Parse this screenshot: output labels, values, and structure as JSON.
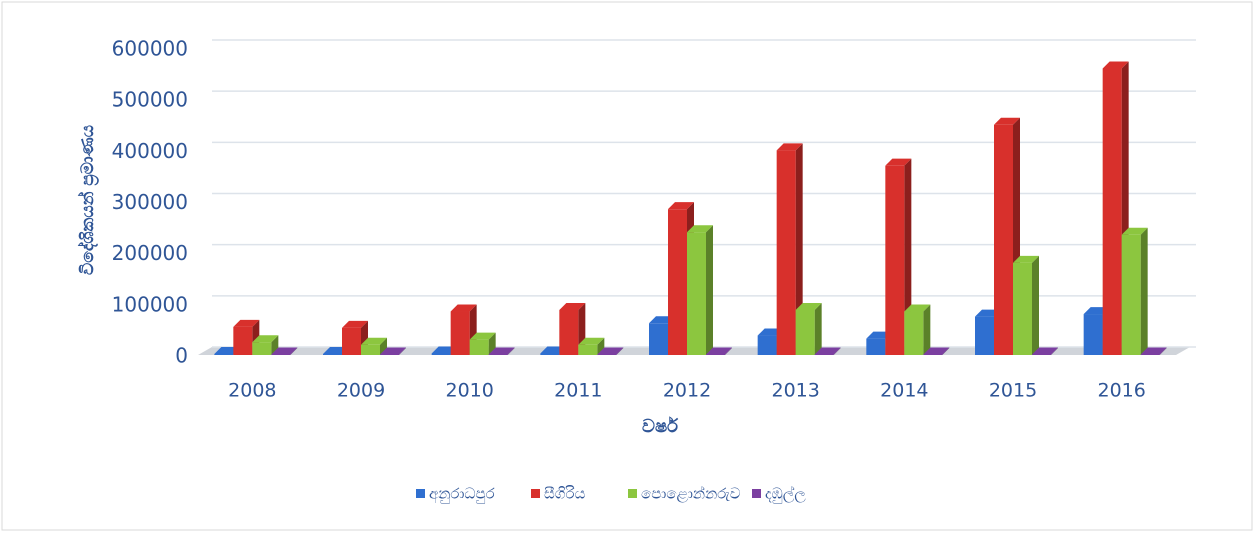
{
  "chart_data": {
    "type": "bar",
    "x_label": "වර්ෂ",
    "y_label": "විදේශිකයන් ප්‍රමාණය",
    "categories": [
      "2008",
      "2009",
      "2010",
      "2011",
      "2012",
      "2013",
      "2014",
      "2015",
      "2016"
    ],
    "series": [
      {
        "name": "අනුරාධපුර",
        "color": "#2f6fd0",
        "values": [
          2000,
          2000,
          3000,
          3000,
          62000,
          38000,
          32000,
          75000,
          80000
        ]
      },
      {
        "name": "සීගිරිය",
        "color": "#d8302c",
        "values": [
          55000,
          53000,
          85000,
          88000,
          285000,
          400000,
          370000,
          450000,
          560000
        ]
      },
      {
        "name": "පොළොන්නරුව",
        "color": "#8cc63f",
        "values": [
          25000,
          20000,
          30000,
          20000,
          240000,
          88000,
          85000,
          180000,
          235000
        ]
      },
      {
        "name": "දඹුල්ල",
        "color": "#7b3fa0",
        "values": [
          1000,
          1000,
          1000,
          1000,
          1000,
          1000,
          1000,
          1000,
          1000
        ]
      }
    ],
    "ylim": [
      0,
      600000
    ],
    "yticks": [
      0,
      100000,
      200000,
      300000,
      400000,
      500000,
      600000
    ],
    "grid": true,
    "legend": "bottom"
  }
}
